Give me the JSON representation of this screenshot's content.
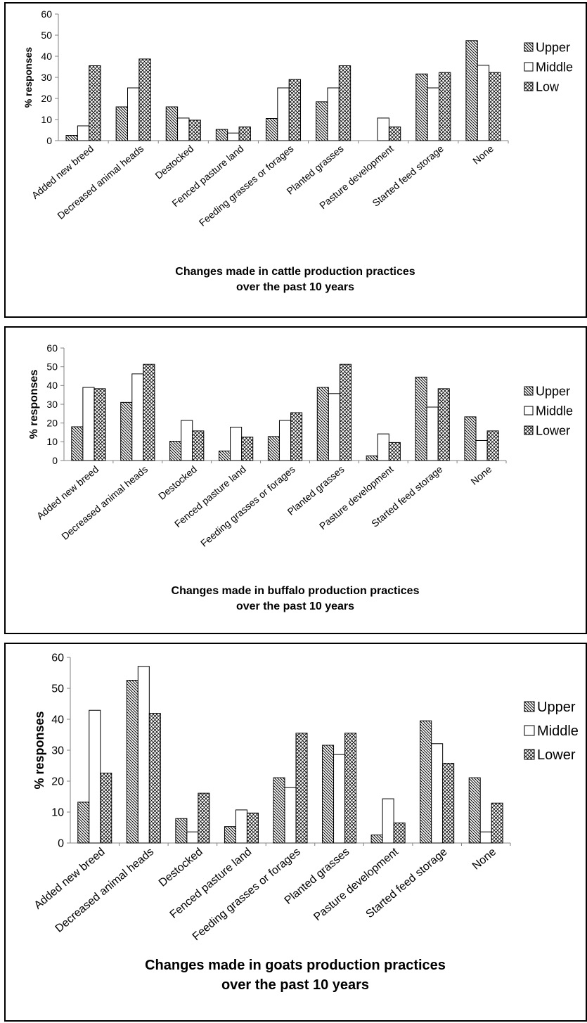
{
  "chart_data": [
    {
      "type": "bar",
      "categories": [
        "Added new breed",
        "Decreased animal heads",
        "Destocked",
        "Fenced pasture land",
        "Feeding grasses or forages",
        "Planted grasses",
        "Pasture development",
        "Started feed storage",
        "None"
      ],
      "series": [
        {
          "name": "Upper",
          "values": [
            2.5,
            16,
            16,
            5.3,
            10.5,
            18.4,
            0,
            31.6,
            47.4
          ]
        },
        {
          "name": "Middle",
          "values": [
            7,
            25,
            10.7,
            3.6,
            25,
            25,
            10.7,
            25,
            35.7
          ]
        },
        {
          "name": "Low",
          "values": [
            35.5,
            38.7,
            9.7,
            6.5,
            29,
            35.5,
            6.5,
            32.3,
            32.3
          ]
        }
      ],
      "title": "Changes made in cattle production practices over the past 10 years",
      "title_lines": [
        "Changes made in cattle production practices",
        "over the past 10 years"
      ],
      "ylabel": "% responses",
      "ylim": [
        0,
        60
      ],
      "yticks": [
        "0",
        "10",
        "20",
        "30",
        "40",
        "50",
        "60"
      ],
      "grid": false,
      "legend": "right"
    },
    {
      "type": "bar",
      "categories": [
        "Added new breed",
        "Decreased animal heads",
        "Destocked",
        "Fenced pasture land",
        "Feeding grasses or forages",
        "Planted grasses",
        "Pasture development",
        "Started feed storage",
        "None"
      ],
      "series": [
        {
          "name": "Upper",
          "values": [
            18,
            31,
            10.3,
            5.1,
            12.8,
            39,
            2.5,
            44.5,
            23.3
          ]
        },
        {
          "name": "Middle",
          "values": [
            39,
            46.2,
            21.4,
            17.8,
            21.4,
            35.7,
            14.2,
            28.5,
            10.7
          ]
        },
        {
          "name": "Lower",
          "values": [
            38.3,
            51.3,
            15.8,
            12.5,
            25.5,
            51.3,
            9.6,
            38.3,
            15.8
          ]
        }
      ],
      "title": "Changes made in buffalo production practices over the past 10 years",
      "title_lines": [
        "Changes made in buffalo production practices",
        "over the past 10 years"
      ],
      "ylabel": "% responses",
      "ylim": [
        0,
        60
      ],
      "yticks": [
        "0",
        "10",
        "20",
        "30",
        "40",
        "50",
        "60"
      ],
      "grid": false,
      "legend": "right"
    },
    {
      "type": "bar",
      "categories": [
        "Added new breed",
        "Decreased animal heads",
        "Destocked",
        "Fenced pasture land",
        "Feeding grasses or forages",
        "Planted grasses",
        "Pasture development",
        "Started feed storage",
        "None"
      ],
      "series": [
        {
          "name": "Upper",
          "values": [
            13.2,
            52.6,
            7.9,
            5.3,
            21.1,
            31.6,
            2.6,
            39.5,
            21.1
          ]
        },
        {
          "name": "Middle",
          "values": [
            42.9,
            57.1,
            3.6,
            10.7,
            17.9,
            28.6,
            14.3,
            32.1,
            3.6
          ]
        },
        {
          "name": "Lower",
          "values": [
            22.6,
            41.9,
            16.1,
            9.7,
            35.5,
            35.5,
            6.5,
            25.8,
            12.9
          ]
        }
      ],
      "title": "Changes made in goats production practices over the past 10 years",
      "title_lines": [
        "Changes made in goats production practices",
        "over the past 10 years"
      ],
      "ylabel": "% responses",
      "ylim": [
        0,
        60
      ],
      "yticks": [
        "0",
        "10",
        "20",
        "30",
        "40",
        "50",
        "60"
      ],
      "grid": false,
      "legend": "right"
    }
  ]
}
